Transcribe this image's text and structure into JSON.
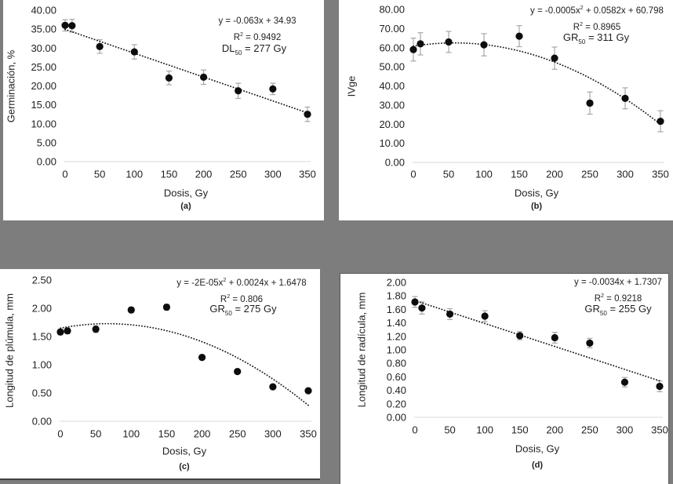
{
  "page": {
    "background_color": "#7d7d7d",
    "panel_background": "#ffffff"
  },
  "colors": {
    "text": "#1f1f1f",
    "point": "#0d0d0d",
    "trendline": "#1a1a1a",
    "error_bar": "#a6a6a6",
    "axis_line": "#d9d9d9",
    "panel_c_bottom_border": "#404040",
    "panel_d_border": "#595959"
  },
  "chart_data": [
    {
      "id": "a",
      "type": "scatter",
      "caption": "(a)",
      "xlabel": "Dosis, Gy",
      "ylabel": "Germinación, %",
      "xlim": [
        0,
        350
      ],
      "ylim": [
        0,
        40
      ],
      "x_ticks": [
        0,
        50,
        100,
        150,
        200,
        250,
        300,
        350
      ],
      "y_tick_values": [
        40,
        35,
        30,
        25,
        20,
        15,
        10,
        5,
        0
      ],
      "y_tick_labels": [
        "40.00",
        "35.00",
        "30.00",
        "25.00",
        "20.00",
        "15.00",
        "10.00",
        "5.00",
        "0.00"
      ],
      "x": [
        0,
        10,
        50,
        100,
        150,
        200,
        250,
        300,
        350
      ],
      "y": [
        36.0,
        35.9,
        30.4,
        29.0,
        22.1,
        22.3,
        18.7,
        19.2,
        12.5
      ],
      "y_err": [
        1.5,
        1.7,
        1.8,
        1.9,
        1.8,
        1.9,
        2.0,
        1.5,
        1.9
      ],
      "annotations": {
        "equation": "y = -0.063x + 34.93",
        "r2": "R^2 = 0.9492",
        "dose50": "DL_50 = 277 Gy"
      },
      "trend": {
        "kind": "linear",
        "coeffs": [
          -0.063,
          34.93
        ],
        "x_range": [
          0,
          350
        ],
        "style": "dotted"
      },
      "grid": false,
      "legend": false
    },
    {
      "id": "b",
      "type": "scatter",
      "caption": "(b)",
      "xlabel": "Dosis, Gy",
      "ylabel": "IVge",
      "xlim": [
        0,
        350
      ],
      "ylim": [
        0,
        80
      ],
      "x_ticks": [
        0,
        50,
        100,
        150,
        200,
        250,
        300,
        350
      ],
      "y_tick_values": [
        80,
        70,
        60,
        50,
        40,
        30,
        20,
        10,
        0
      ],
      "y_tick_labels": [
        "80.00",
        "70.00",
        "60.00",
        "50.00",
        "40.00",
        "30.00",
        "20.00",
        "10.00",
        "0.00"
      ],
      "x": [
        0,
        10,
        50,
        100,
        150,
        200,
        250,
        300,
        350
      ],
      "y": [
        59.0,
        62.0,
        63.0,
        61.5,
        66.0,
        54.5,
        31.0,
        33.5,
        21.5
      ],
      "y_err": [
        6.0,
        5.8,
        5.5,
        5.8,
        5.5,
        5.8,
        5.8,
        5.5,
        5.5
      ],
      "annotations": {
        "equation": "y = -0.0005x^2 + 0.0582x + 60.798",
        "r2": "R^2 = 0.8965",
        "dose50": "GR_50 = 311 Gy"
      },
      "trend": {
        "kind": "poly2",
        "coeffs": [
          -0.0005,
          0.0582,
          60.798
        ],
        "x_range": [
          0,
          350
        ],
        "style": "dotted"
      },
      "grid": false,
      "legend": false
    },
    {
      "id": "c",
      "type": "scatter",
      "caption": "(c)",
      "xlabel": "Dosis, Gy",
      "ylabel": "Longitud de plúmula, mm",
      "xlim": [
        0,
        350
      ],
      "ylim": [
        0,
        2.5
      ],
      "x_ticks": [
        0,
        50,
        100,
        150,
        200,
        250,
        300,
        350
      ],
      "y_tick_values": [
        2.5,
        2.0,
        1.5,
        1.0,
        0.5,
        0
      ],
      "y_tick_labels": [
        "2.50",
        "2.00",
        "1.50",
        "1.00",
        "0.50",
        "0.00"
      ],
      "x": [
        0,
        10,
        50,
        100,
        150,
        200,
        250,
        300,
        350
      ],
      "y": [
        1.58,
        1.6,
        1.63,
        1.97,
        2.02,
        1.13,
        0.88,
        0.61,
        0.54
      ],
      "y_err": [
        0.05,
        0.05,
        0.06,
        0.05,
        0.05,
        0.04,
        0.04,
        0.04,
        0.04
      ],
      "annotations": {
        "equation": "y = -2E-05x^2 + 0.0024x + 1.6478",
        "r2": "R^2 = 0.806",
        "dose50": "GR_50 = 275 Gy"
      },
      "trend": {
        "kind": "poly2",
        "coeffs": [
          -1.8e-05,
          0.0024,
          1.6478
        ],
        "x_range": [
          0,
          350
        ],
        "style": "dotted"
      },
      "grid": false,
      "legend": false
    },
    {
      "id": "d",
      "type": "scatter",
      "caption": "(d)",
      "xlabel": "Dosis, Gy",
      "ylabel": "Longitud de radícula, mm",
      "xlim": [
        0,
        350
      ],
      "ylim": [
        0,
        2.0
      ],
      "x_ticks": [
        0,
        50,
        100,
        150,
        200,
        250,
        300,
        350
      ],
      "y_tick_values": [
        2.0,
        1.8,
        1.6,
        1.4,
        1.2,
        1.0,
        0.8,
        0.6,
        0.4,
        0.2,
        0
      ],
      "y_tick_labels": [
        "2.00",
        "1.80",
        "1.60",
        "1.40",
        "1.20",
        "1.00",
        "0.80",
        "0.60",
        "0.40",
        "0.20",
        "0.00"
      ],
      "x": [
        0,
        10,
        50,
        100,
        150,
        200,
        250,
        300,
        350
      ],
      "y": [
        1.71,
        1.62,
        1.53,
        1.5,
        1.21,
        1.18,
        1.1,
        0.52,
        0.46
      ],
      "y_err": [
        0.08,
        0.09,
        0.08,
        0.08,
        0.06,
        0.08,
        0.07,
        0.07,
        0.08
      ],
      "annotations": {
        "equation": "y = -0.0034x + 1.7307",
        "r2": "R^2 = 0.9218",
        "dose50": "GR_50 = 255 Gy"
      },
      "trend": {
        "kind": "linear",
        "coeffs": [
          -0.0034,
          1.7307
        ],
        "x_range": [
          0,
          350
        ],
        "style": "dotted"
      },
      "grid": false,
      "legend": false
    }
  ]
}
